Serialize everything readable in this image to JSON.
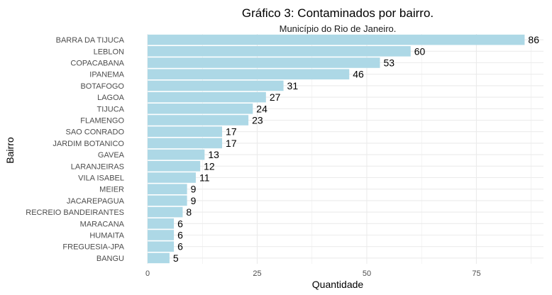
{
  "chart_data": {
    "type": "bar",
    "orientation": "horizontal",
    "title": "Gráfico 3: Contaminados por bairro.",
    "subtitle": "Município do Rio de Janeiro.",
    "xlabel": "Quantidade",
    "ylabel": "Bairro",
    "categories": [
      "BARRA DA TIJUCA",
      "LEBLON",
      "COPACABANA",
      "IPANEMA",
      "BOTAFOGO",
      "LAGOA",
      "TIJUCA",
      "FLAMENGO",
      "SAO CONRADO",
      "JARDIM BOTANICO",
      "GAVEA",
      "LARANJEIRAS",
      "VILA ISABEL",
      "MEIER",
      "JACAREPAGUA",
      "RECREIO BANDEIRANTES",
      "MARACANA",
      "HUMAITA",
      "FREGUESIA-JPA",
      "BANGU"
    ],
    "values": [
      86,
      60,
      53,
      46,
      31,
      27,
      24,
      23,
      17,
      17,
      13,
      12,
      11,
      9,
      9,
      8,
      6,
      6,
      6,
      5
    ],
    "xlim": [
      0,
      90.3
    ],
    "xticks": [
      0,
      25,
      50,
      75
    ],
    "grid": true,
    "legend": "none",
    "bar_color": "#add8e6",
    "grid_color": "#ebebeb"
  }
}
